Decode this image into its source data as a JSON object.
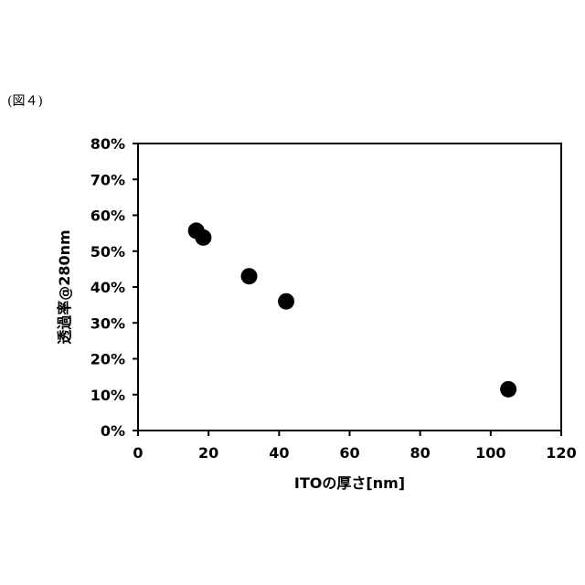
{
  "figure_label": "(図４)",
  "chart_data": {
    "type": "scatter",
    "xlabel": "ITOの厚さ[nm]",
    "ylabel": "透過率@280nm",
    "xlim": [
      0,
      120
    ],
    "ylim": [
      0,
      80
    ],
    "x_ticks": [
      0,
      20,
      40,
      60,
      80,
      100,
      120
    ],
    "y_ticks": [
      0,
      10,
      20,
      30,
      40,
      50,
      60,
      70,
      80
    ],
    "y_tick_labels": [
      "0%",
      "10%",
      "20%",
      "30%",
      "40%",
      "50%",
      "60%",
      "70%",
      "80%"
    ],
    "grid": false,
    "legend": "none",
    "marker_color": "#000000",
    "points": [
      {
        "x": 16.5,
        "y": 55.7
      },
      {
        "x": 18.5,
        "y": 53.8
      },
      {
        "x": 31.5,
        "y": 43.0
      },
      {
        "x": 42.0,
        "y": 36.0
      },
      {
        "x": 105.0,
        "y": 11.5
      }
    ]
  }
}
